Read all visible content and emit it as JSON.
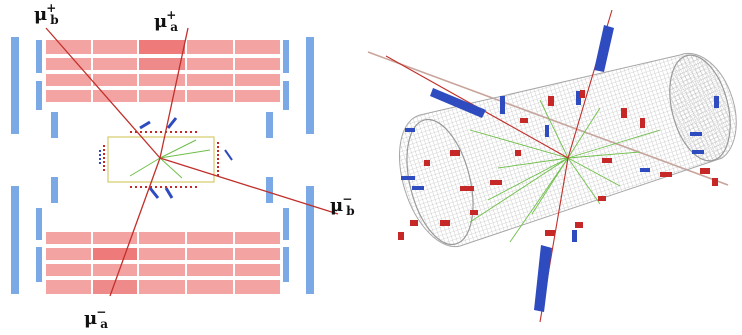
{
  "labels": {
    "mu_b_plus": {
      "sym": "μ",
      "sup": "+",
      "sub": "b"
    },
    "mu_a_plus": {
      "sym": "μ",
      "sup": "+",
      "sub": "a"
    },
    "mu_b_minus": {
      "sym": "μ",
      "sup": "−",
      "sub": "b"
    },
    "mu_a_minus": {
      "sym": "μ",
      "sup": "−",
      "sub": "a"
    }
  },
  "colors": {
    "muon_chamber": "#7aa9e6",
    "calorimeter": "#f4a3a3",
    "calorimeter_dark": "#ee7a7a",
    "muon_track": "#c0302b",
    "tracker_track": "#6fbf4a",
    "tracker_box_edge": "#d7cb6a",
    "hcal_hit": "#2e4bbf",
    "ecal_hit": "#c62828",
    "cylinder_mesh": "#b0b0b0"
  }
}
